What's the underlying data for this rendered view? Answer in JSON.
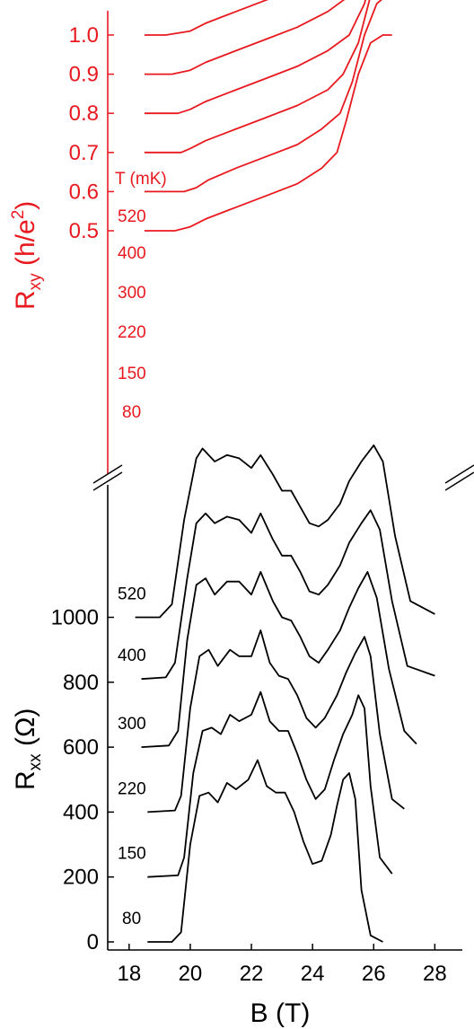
{
  "chart_data": [
    {
      "type": "line",
      "panel": "top",
      "ylabel": "Rxy (h/e²)",
      "ylabel_main": "R",
      "ylabel_sub": "xy",
      "ylabel_rest": " (h/e",
      "ylabel_sup": "2",
      "ylabel_close": ")",
      "yticks": [
        "1.0",
        "0.9",
        "0.8",
        "0.7",
        "0.6",
        "0.5"
      ],
      "ytick_values": [
        1.0,
        0.9,
        0.8,
        0.7,
        0.6,
        0.5
      ],
      "legend_title": "T (mK)",
      "color": "#e8191f",
      "note": "curves offset vertically; each plateau ends at the listed value",
      "series": [
        {
          "name": "520",
          "x": [
            18.5,
            19.2,
            20.0,
            20.5,
            21.5,
            22.5,
            23.5,
            24.5,
            25.2,
            25.8,
            26.3,
            26.8,
            27.5,
            28.0
          ],
          "y": [
            0.5,
            0.5,
            0.51,
            0.53,
            0.56,
            0.59,
            0.62,
            0.66,
            0.7,
            0.78,
            0.9,
            0.98,
            1.0,
            1.0
          ]
        },
        {
          "name": "400",
          "x": [
            18.5,
            19.4,
            20.0,
            20.5,
            21.5,
            22.5,
            23.5,
            24.5,
            25.2,
            25.8,
            26.3,
            26.8,
            27.5,
            28.0
          ],
          "y": [
            0.4,
            0.4,
            0.41,
            0.43,
            0.46,
            0.49,
            0.52,
            0.56,
            0.6,
            0.68,
            0.8,
            0.88,
            0.9,
            0.9
          ]
        },
        {
          "name": "300",
          "x": [
            18.5,
            19.6,
            20.0,
            20.5,
            21.5,
            22.5,
            23.5,
            24.5,
            25.2,
            25.7,
            26.1,
            26.6,
            27.0,
            27.5
          ],
          "y": [
            0.3,
            0.3,
            0.31,
            0.33,
            0.36,
            0.39,
            0.42,
            0.46,
            0.5,
            0.58,
            0.7,
            0.78,
            0.8,
            0.8
          ]
        },
        {
          "name": "220",
          "x": [
            18.5,
            19.7,
            20.0,
            20.5,
            21.5,
            22.5,
            23.5,
            24.5,
            25.0,
            25.5,
            25.9,
            26.3,
            26.8,
            27.1
          ],
          "y": [
            0.2,
            0.2,
            0.21,
            0.23,
            0.26,
            0.29,
            0.32,
            0.36,
            0.4,
            0.48,
            0.6,
            0.68,
            0.7,
            0.7
          ]
        },
        {
          "name": "150",
          "x": [
            18.5,
            19.8,
            20.2,
            20.6,
            21.5,
            22.5,
            23.5,
            24.3,
            24.9,
            25.3,
            25.7,
            26.1,
            26.4,
            26.6
          ],
          "y": [
            0.1,
            0.1,
            0.11,
            0.13,
            0.16,
            0.19,
            0.22,
            0.26,
            0.3,
            0.38,
            0.5,
            0.58,
            0.6,
            0.6
          ]
        },
        {
          "name": "80",
          "x": [
            18.5,
            19.5,
            20.0,
            20.5,
            21.5,
            22.5,
            23.5,
            24.3,
            24.8,
            25.1,
            25.5,
            25.9,
            26.3,
            26.6
          ],
          "y": [
            0.0,
            0.0,
            0.01,
            0.03,
            0.06,
            0.09,
            0.12,
            0.16,
            0.2,
            0.28,
            0.4,
            0.48,
            0.5,
            0.5
          ]
        }
      ]
    },
    {
      "type": "line",
      "panel": "bottom",
      "xlabel": "B (T)",
      "ylabel": "Rxx (Ω)",
      "ylabel_main": "R",
      "ylabel_sub": "xx",
      "ylabel_rest": " (Ω)",
      "xticks": [
        "18",
        "20",
        "22",
        "24",
        "26",
        "28"
      ],
      "xtick_values": [
        18,
        20,
        22,
        24,
        26,
        28
      ],
      "yticks": [
        "0",
        "200",
        "400",
        "600",
        "800",
        "1000"
      ],
      "ytick_values": [
        0,
        200,
        400,
        600,
        800,
        1000
      ],
      "xlim": [
        17.3,
        28.9
      ],
      "color": "#000000",
      "note": "curves offset vertically by 200 Ω",
      "series": [
        {
          "name": "520",
          "x": [
            18.2,
            19.0,
            19.4,
            19.8,
            20.2,
            20.4,
            20.8,
            21.2,
            21.6,
            22.0,
            22.3,
            22.7,
            23.0,
            23.3,
            23.6,
            23.9,
            24.2,
            24.5,
            24.9,
            25.2,
            25.6,
            26.0,
            26.3,
            26.7,
            27.2,
            28.0
          ],
          "y": [
            1000,
            1000,
            1040,
            1300,
            1490,
            1520,
            1480,
            1500,
            1490,
            1460,
            1500,
            1440,
            1390,
            1390,
            1340,
            1290,
            1280,
            1300,
            1350,
            1420,
            1480,
            1530,
            1480,
            1250,
            1050,
            1010
          ]
        },
        {
          "name": "400",
          "x": [
            18.4,
            19.2,
            19.5,
            19.9,
            20.2,
            20.5,
            20.8,
            21.2,
            21.6,
            22.0,
            22.3,
            22.7,
            23.0,
            23.3,
            23.6,
            23.9,
            24.2,
            24.5,
            24.9,
            25.2,
            25.6,
            25.9,
            26.2,
            26.6,
            27.1,
            28.0
          ],
          "y": [
            810,
            815,
            860,
            1120,
            1290,
            1320,
            1290,
            1310,
            1300,
            1260,
            1320,
            1240,
            1190,
            1190,
            1140,
            1080,
            1070,
            1100,
            1160,
            1230,
            1290,
            1330,
            1270,
            1050,
            850,
            820
          ]
        },
        {
          "name": "300",
          "x": [
            18.4,
            19.3,
            19.6,
            19.9,
            20.2,
            20.5,
            20.8,
            21.2,
            21.6,
            22.0,
            22.3,
            22.7,
            23.0,
            23.3,
            23.6,
            23.9,
            24.2,
            24.5,
            24.9,
            25.2,
            25.5,
            25.8,
            26.1,
            26.5,
            27.0,
            27.4
          ],
          "y": [
            600,
            605,
            650,
            930,
            1100,
            1120,
            1070,
            1110,
            1110,
            1070,
            1140,
            1050,
            1000,
            990,
            940,
            880,
            860,
            900,
            960,
            1030,
            1090,
            1140,
            1060,
            840,
            650,
            610
          ]
        },
        {
          "name": "220",
          "x": [
            18.6,
            19.5,
            19.7,
            20.0,
            20.3,
            20.6,
            20.9,
            21.3,
            21.6,
            22.0,
            22.3,
            22.6,
            22.9,
            23.2,
            23.5,
            23.8,
            24.1,
            24.4,
            24.8,
            25.1,
            25.4,
            25.7,
            25.9,
            26.2,
            26.6,
            27.0
          ],
          "y": [
            400,
            405,
            450,
            720,
            880,
            900,
            850,
            900,
            880,
            880,
            960,
            860,
            820,
            810,
            760,
            690,
            660,
            690,
            760,
            830,
            890,
            940,
            880,
            640,
            440,
            410
          ]
        },
        {
          "name": "150",
          "x": [
            18.6,
            19.6,
            19.8,
            20.1,
            20.4,
            20.7,
            21.0,
            21.3,
            21.6,
            22.0,
            22.3,
            22.6,
            22.9,
            23.2,
            23.5,
            23.8,
            24.1,
            24.4,
            24.7,
            25.0,
            25.3,
            25.5,
            25.7,
            25.9,
            26.2,
            26.6
          ],
          "y": [
            200,
            205,
            260,
            520,
            650,
            660,
            640,
            700,
            680,
            700,
            770,
            680,
            650,
            650,
            580,
            500,
            440,
            470,
            560,
            640,
            700,
            760,
            720,
            480,
            260,
            210
          ]
        },
        {
          "name": "80",
          "x": [
            18.6,
            19.4,
            19.7,
            20.0,
            20.3,
            20.6,
            20.9,
            21.2,
            21.5,
            21.9,
            22.2,
            22.5,
            22.8,
            23.1,
            23.4,
            23.7,
            24.0,
            24.3,
            24.6,
            24.8,
            25.0,
            25.2,
            25.4,
            25.6,
            25.9,
            26.3
          ],
          "y": [
            0,
            0,
            30,
            300,
            450,
            460,
            430,
            490,
            470,
            500,
            560,
            480,
            460,
            460,
            400,
            310,
            240,
            250,
            330,
            420,
            500,
            520,
            440,
            160,
            20,
            0
          ]
        }
      ]
    }
  ]
}
